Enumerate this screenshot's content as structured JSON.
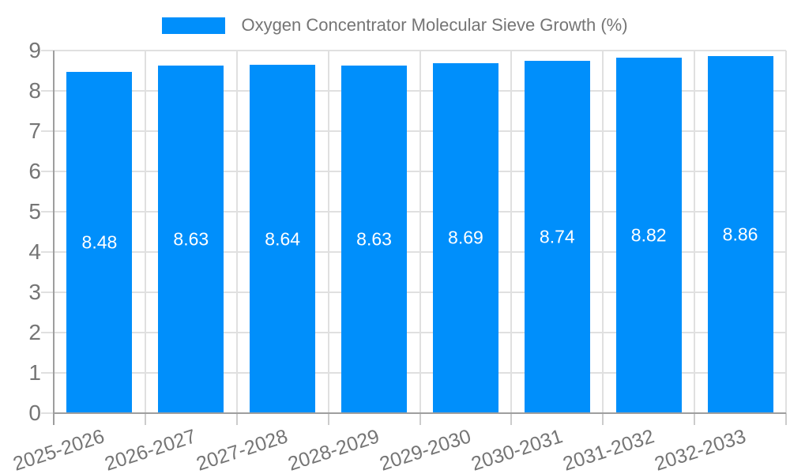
{
  "legend": {
    "label": "Oxygen Concentrator Molecular Sieve Growth (%)"
  },
  "chart_data": {
    "type": "bar",
    "title": "Oxygen Concentrator Molecular Sieve Growth (%)",
    "categories": [
      "2025-2026",
      "2026-2027",
      "2027-2028",
      "2028-2029",
      "2029-2030",
      "2030-2031",
      "2031-2032",
      "2032-2033"
    ],
    "series": [
      {
        "name": "Oxygen Concentrator Molecular Sieve Growth (%)",
        "values": [
          8.48,
          8.63,
          8.64,
          8.63,
          8.69,
          8.74,
          8.82,
          8.86
        ]
      }
    ],
    "value_labels": [
      "8.48",
      "8.63",
      "8.64",
      "8.63",
      "8.69",
      "8.74",
      "8.82",
      "8.86"
    ],
    "xlabel": "",
    "ylabel": "",
    "ylim": [
      0,
      9
    ],
    "ytick_step": 1,
    "yticks": [
      "0",
      "1",
      "2",
      "3",
      "4",
      "5",
      "6",
      "7",
      "8",
      "9"
    ],
    "grid": true,
    "legend_position": "top",
    "x_label_rotation_deg": -18,
    "colors": {
      "bar": "#008ffb",
      "grid": "#e0e0e0",
      "tick": "#cccccc",
      "axis": "#9e9e9e",
      "tick_text": "#757575",
      "legend_text": "#757575",
      "value_text": "#ffffff",
      "background": "#ffffff"
    }
  }
}
